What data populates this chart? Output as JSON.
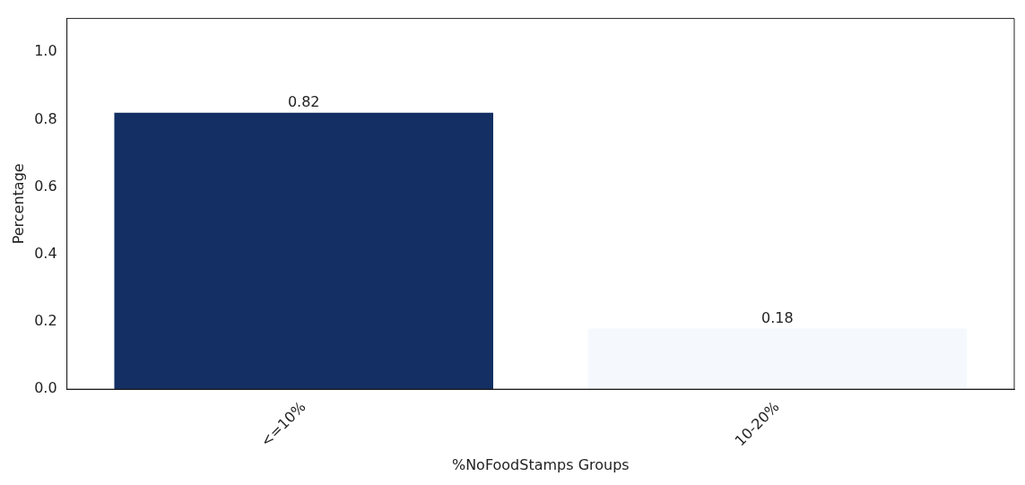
{
  "chart_data": {
    "type": "bar",
    "xlabel": "%NoFoodStamps Groups",
    "ylabel": "Percentage",
    "categories": [
      "<=10%",
      "10-20%"
    ],
    "values": [
      0.82,
      0.18
    ],
    "colors": [
      "#132f63",
      "#f5f9fe"
    ],
    "ylim": [
      0,
      1.1
    ],
    "yticks": [
      {
        "value": 0,
        "label": "0.0"
      },
      0.2,
      0.4,
      0.6,
      0.8,
      {
        "value": 1,
        "label": "1.0"
      }
    ],
    "data_labels": true,
    "grid": false,
    "legend": false
  }
}
